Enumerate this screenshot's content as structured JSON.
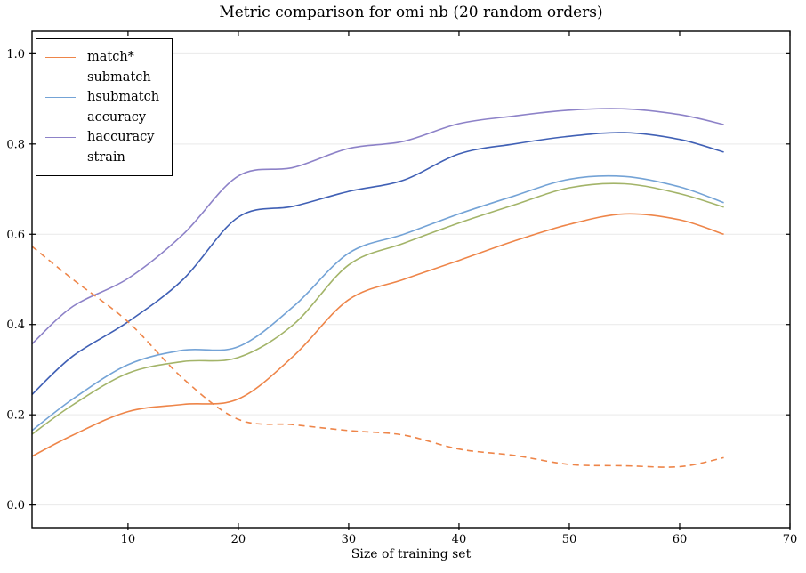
{
  "chart_data": {
    "type": "line",
    "title": "Metric comparison for omi nb (20 random orders)",
    "xlabel": "Size of training set",
    "ylabel": "",
    "xlim": [
      1.3,
      70
    ],
    "ylim": [
      -0.05,
      1.05
    ],
    "xticks": [
      10,
      20,
      30,
      40,
      50,
      60,
      70
    ],
    "yticks": [
      0.0,
      0.2,
      0.4,
      0.6,
      0.8,
      1.0
    ],
    "grid": "horizontal-only",
    "legend_position": "upper-left",
    "x": [
      1.3,
      5,
      10,
      15,
      20,
      25,
      30,
      35,
      40,
      45,
      50,
      55,
      60,
      64
    ],
    "series": [
      {
        "name": "match*",
        "color": "#ee8549",
        "style": "solid",
        "values": [
          0.108,
          0.155,
          0.207,
          0.223,
          0.235,
          0.33,
          0.455,
          0.5,
          0.542,
          0.585,
          0.622,
          0.645,
          0.632,
          0.6
        ]
      },
      {
        "name": "submatch",
        "color": "#a3b469",
        "style": "solid",
        "values": [
          0.157,
          0.222,
          0.292,
          0.318,
          0.327,
          0.4,
          0.532,
          0.58,
          0.625,
          0.665,
          0.703,
          0.712,
          0.69,
          0.66
        ]
      },
      {
        "name": "hsubmatch",
        "color": "#74a3d6",
        "style": "solid",
        "values": [
          0.165,
          0.235,
          0.311,
          0.343,
          0.351,
          0.44,
          0.558,
          0.6,
          0.645,
          0.685,
          0.722,
          0.728,
          0.705,
          0.67
        ]
      },
      {
        "name": "accuracy",
        "color": "#4060b5",
        "style": "solid",
        "values": [
          0.245,
          0.33,
          0.406,
          0.5,
          0.638,
          0.662,
          0.695,
          0.72,
          0.778,
          0.8,
          0.817,
          0.825,
          0.81,
          0.782
        ]
      },
      {
        "name": "haccuracy",
        "color": "#8d82c8",
        "style": "solid",
        "values": [
          0.357,
          0.44,
          0.502,
          0.6,
          0.729,
          0.748,
          0.79,
          0.806,
          0.845,
          0.862,
          0.875,
          0.878,
          0.865,
          0.843
        ]
      },
      {
        "name": "strain",
        "color": "#ee8549",
        "style": "dashed",
        "values": [
          0.573,
          0.5,
          0.406,
          0.28,
          0.19,
          0.178,
          0.165,
          0.155,
          0.124,
          0.11,
          0.09,
          0.087,
          0.085,
          0.105
        ]
      }
    ]
  },
  "style": {
    "spine_color": "#000000",
    "grid_color": "#e9e9e9",
    "background": "#ffffff"
  }
}
